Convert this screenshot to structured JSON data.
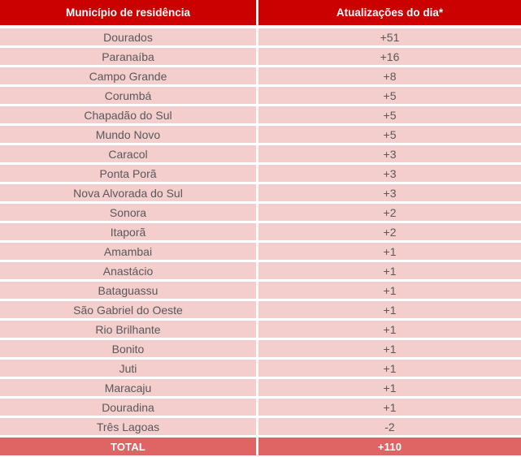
{
  "chart_data": {
    "type": "table",
    "columns": [
      "Município de residência",
      "Atualizações do dia*"
    ],
    "rows": [
      [
        "Dourados",
        "+51"
      ],
      [
        "Paranaíba",
        "+16"
      ],
      [
        "Campo Grande",
        "+8"
      ],
      [
        "Corumbá",
        "+5"
      ],
      [
        "Chapadão do Sul",
        "+5"
      ],
      [
        "Mundo Novo",
        "+5"
      ],
      [
        "Caracol",
        "+3"
      ],
      [
        "Ponta Porã",
        "+3"
      ],
      [
        "Nova Alvorada do Sul",
        "+3"
      ],
      [
        "Sonora",
        "+2"
      ],
      [
        "Itaporã",
        "+2"
      ],
      [
        "Amambai",
        "+1"
      ],
      [
        "Anastácio",
        "+1"
      ],
      [
        "Bataguassu",
        "+1"
      ],
      [
        "São Gabriel do Oeste",
        "+1"
      ],
      [
        "Rio Brilhante",
        "+1"
      ],
      [
        "Bonito",
        "+1"
      ],
      [
        "Juti",
        "+1"
      ],
      [
        "Maracaju",
        "+1"
      ],
      [
        "Douradina",
        "+1"
      ],
      [
        "Três Lagoas",
        "-2"
      ]
    ],
    "total_row": [
      "TOTAL",
      "+110"
    ]
  },
  "colors": {
    "header_bg": "#CB0000",
    "row_bg": "#F4CDCD",
    "total_bg": "#DF6565",
    "row_text": "#595959",
    "header_text": "#FFFFFF"
  }
}
